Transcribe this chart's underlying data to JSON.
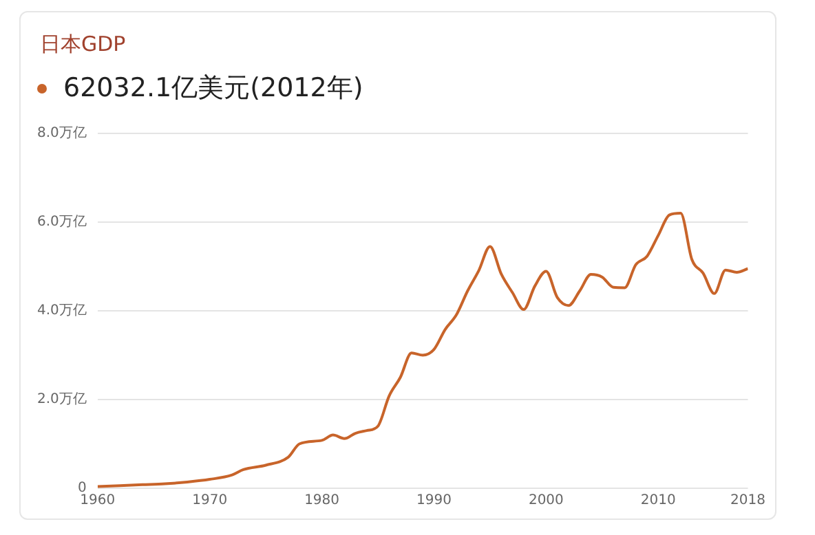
{
  "chart_data": {
    "type": "line",
    "title": "日本GDP",
    "subtitle": "62032.1亿美元(2012年)",
    "x": [
      1960,
      1962,
      1964,
      1966,
      1968,
      1970,
      1972,
      1973,
      1975,
      1977,
      1978,
      1980,
      1981,
      1982,
      1983,
      1984,
      1985,
      1986,
      1987,
      1988,
      1989,
      1990,
      1991,
      1992,
      1993,
      1994,
      1995,
      1996,
      1997,
      1998,
      1999,
      2000,
      2001,
      2002,
      2003,
      2004,
      2005,
      2006,
      2007,
      2008,
      2009,
      2010,
      2011,
      2012,
      2013,
      2014,
      2015,
      2016,
      2017,
      2018
    ],
    "series": [
      {
        "color": "#c8642a",
        "values": [
          0.04,
          0.06,
          0.08,
          0.1,
          0.14,
          0.2,
          0.3,
          0.42,
          0.52,
          0.7,
          1.0,
          1.08,
          1.2,
          1.12,
          1.24,
          1.3,
          1.4,
          2.08,
          2.5,
          3.05,
          3.0,
          3.13,
          3.58,
          3.91,
          4.45,
          4.91,
          5.45,
          4.83,
          4.41,
          4.03,
          4.56,
          4.89,
          4.3,
          4.12,
          4.45,
          4.82,
          4.76,
          4.53,
          4.52,
          5.04,
          5.23,
          5.7,
          6.16,
          6.2,
          5.16,
          4.85,
          4.39,
          4.92,
          4.87,
          4.95
        ]
      }
    ],
    "xlim": [
      1960,
      2018
    ],
    "xticks": [
      1960,
      1970,
      1980,
      1990,
      2000,
      2010,
      2018
    ],
    "ylim": [
      0,
      8
    ],
    "yticks": [
      {
        "value": 0,
        "label": "0"
      },
      {
        "value": 2,
        "label": "2.0万亿"
      },
      {
        "value": 4,
        "label": "4.0万亿"
      },
      {
        "value": 6,
        "label": "6.0万亿"
      },
      {
        "value": 8,
        "label": "8.0万亿"
      }
    ],
    "grid": "y",
    "marker": "none",
    "line_style": "solid",
    "legend": false
  }
}
